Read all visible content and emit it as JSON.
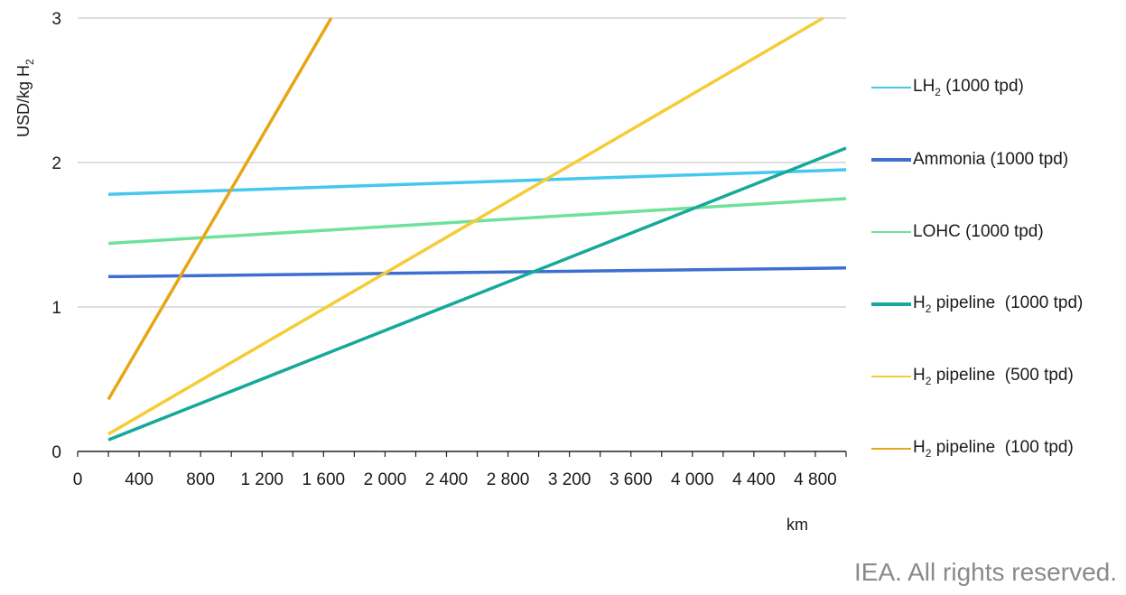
{
  "chart_data": {
    "type": "line",
    "ylabel_prefix": "USD/kg H",
    "ylabel_sub": "2",
    "xlabel": "km",
    "xlim": [
      0,
      5000
    ],
    "ylim": [
      0,
      3
    ],
    "x_ticks": [
      0,
      400,
      800,
      1200,
      1600,
      2000,
      2400,
      2800,
      3200,
      3600,
      4000,
      4400,
      4800
    ],
    "x_tick_labels": [
      "0",
      "400",
      "800",
      "1 200",
      "1 600",
      "2 000",
      "2 400",
      "2 800",
      "3 200",
      "3 600",
      "4 000",
      "4 400",
      "4 800"
    ],
    "y_ticks": [
      0,
      1,
      2,
      3
    ],
    "y_tick_labels": [
      "0",
      "1",
      "2",
      "3"
    ],
    "grid": "horizontal",
    "legend_position": "right",
    "series": [
      {
        "name_prefix": "LH",
        "name_sub": "2",
        "name_suffix": " (1000 tpd)",
        "color": "#44c8f0",
        "x": [
          200,
          5000
        ],
        "y": [
          1.78,
          1.95
        ]
      },
      {
        "name_prefix": "Ammonia (1000 tpd)",
        "name_sub": "",
        "name_suffix": "",
        "color": "#3d6fd0",
        "x": [
          200,
          5000
        ],
        "y": [
          1.21,
          1.27
        ]
      },
      {
        "name_prefix": "LOHC (1000 tpd)",
        "name_sub": "",
        "name_suffix": "",
        "color": "#6ee29a",
        "x": [
          200,
          5000
        ],
        "y": [
          1.44,
          1.75
        ]
      },
      {
        "name_prefix": "H",
        "name_sub": "2",
        "name_suffix": " pipeline  (1000 tpd)",
        "color": "#16a99a",
        "x": [
          200,
          5000
        ],
        "y": [
          0.08,
          2.1
        ]
      },
      {
        "name_prefix": "H",
        "name_sub": "2",
        "name_suffix": " pipeline  (500 tpd)",
        "color": "#f5cc35",
        "x": [
          200,
          4850
        ],
        "y": [
          0.12,
          3.0
        ]
      },
      {
        "name_prefix": "H",
        "name_sub": "2",
        "name_suffix": " pipeline  (100 tpd)",
        "color": "#e8a514",
        "x": [
          200,
          1650
        ],
        "y": [
          0.36,
          3.0
        ]
      }
    ]
  },
  "credit": "IEA. All rights reserved."
}
